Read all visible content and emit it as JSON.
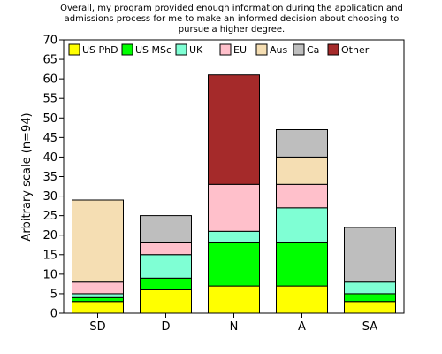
{
  "chart_data": {
    "type": "bar",
    "stacked": true,
    "title_lines": [
      "Overall, my program provided enough information during the application and",
      "admissions process for me to make an informed decision about choosing to",
      "pursue a higher degree."
    ],
    "xlabel": "",
    "ylabel": "Arbitrary scale (n=94)",
    "ylim": [
      0,
      70
    ],
    "ytick_step": 5,
    "grid": false,
    "legend_position": "top",
    "categories": [
      "SD",
      "D",
      "N",
      "A",
      "SA"
    ],
    "series": [
      {
        "name": "US PhD",
        "color": "#ffff00",
        "values": [
          3,
          6,
          7,
          7,
          3
        ]
      },
      {
        "name": "US MSc",
        "color": "#00ff00",
        "values": [
          1,
          3,
          11,
          11,
          2
        ]
      },
      {
        "name": "UK",
        "color": "#7fffd4",
        "values": [
          1,
          6,
          3,
          9,
          3
        ]
      },
      {
        "name": "EU",
        "color": "#ffc0cb",
        "values": [
          3,
          3,
          12,
          6,
          0
        ]
      },
      {
        "name": "Aus",
        "color": "#f5deb3",
        "values": [
          21,
          0,
          0,
          7,
          0
        ]
      },
      {
        "name": "Ca",
        "color": "#bebebe",
        "values": [
          0,
          7,
          0,
          7,
          14
        ]
      },
      {
        "name": "Other",
        "color": "#a52a2a",
        "values": [
          0,
          0,
          28,
          0,
          0
        ]
      }
    ]
  }
}
